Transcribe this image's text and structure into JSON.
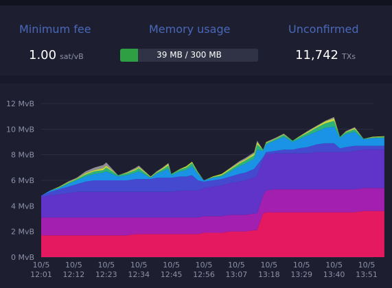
{
  "stats": {
    "min_fee": {
      "label": "Minimum fee",
      "value": "1.00",
      "unit": "sat/vB"
    },
    "memory": {
      "label": "Memory usage",
      "text": "39 MB / 300 MB",
      "fill_fraction": 0.13
    },
    "unconfirmed": {
      "label": "Unconfirmed",
      "value": "11,742",
      "unit": "TXs"
    }
  },
  "colors": {
    "label": "#4a68b9",
    "memory_fill": "#2ea043",
    "layers": [
      "#e5195f",
      "#a21faf",
      "#6034c9",
      "#4549d0",
      "#1a93e6",
      "#2bb37a",
      "#c9d83a",
      "#8f8f94"
    ]
  },
  "chart_data": {
    "type": "area",
    "stacked": true,
    "y_unit": "MvB",
    "ylim": [
      0,
      12
    ],
    "y_ticks": [
      "0 MvB",
      "2 MvB",
      "4 MvB",
      "6 MvB",
      "8 MvB",
      "10 MvB",
      "12 MvB"
    ],
    "x_ticks": [
      {
        "date": "10/5",
        "time": "12:01"
      },
      {
        "date": "10/5",
        "time": "12:12"
      },
      {
        "date": "10/5",
        "time": "12:23"
      },
      {
        "date": "10/5",
        "time": "12:34"
      },
      {
        "date": "10/5",
        "time": "12:45"
      },
      {
        "date": "10/5",
        "time": "12:56"
      },
      {
        "date": "10/5",
        "time": "13:07"
      },
      {
        "date": "10/5",
        "time": "13:18"
      },
      {
        "date": "10/5",
        "time": "13:29"
      },
      {
        "date": "10/5",
        "time": "13:40"
      },
      {
        "date": "10/5",
        "time": "13:51"
      }
    ],
    "x": [
      "12:01",
      "12:04",
      "12:07",
      "12:10",
      "12:13",
      "12:16",
      "12:19",
      "12:22",
      "12:23",
      "12:27",
      "12:30",
      "12:33",
      "12:34",
      "12:38",
      "12:40",
      "12:42",
      "12:44",
      "12:45",
      "12:48",
      "12:50",
      "12:52",
      "12:54",
      "12:56",
      "12:59",
      "13:02",
      "13:05",
      "13:08",
      "13:10",
      "13:13",
      "13:14",
      "13:16",
      "13:17",
      "13:20",
      "13:23",
      "13:26",
      "13:28",
      "13:31",
      "13:34",
      "13:37",
      "13:40",
      "13:42",
      "13:44",
      "13:47",
      "13:50",
      "13:53",
      "13:57"
    ],
    "series_totals": [
      4.8,
      5.2,
      5.5,
      5.9,
      6.2,
      6.6,
      6.9,
      7.2,
      7.4,
      6.4,
      6.7,
      7.0,
      7.3,
      6.3,
      6.7,
      7.0,
      7.4,
      6.4,
      6.9,
      7.2,
      7.5,
      6.8,
      6.0,
      6.3,
      6.6,
      7.0,
      7.4,
      7.7,
      8.1,
      9.1,
      8.5,
      8.9,
      9.2,
      9.6,
      9.1,
      9.4,
      9.8,
      10.2,
      10.6,
      11.0,
      9.4,
      9.8,
      10.1,
      9.2,
      9.4,
      9.5
    ],
    "series": [
      {
        "values": [
          1.7,
          1.7,
          1.7,
          1.7,
          1.7,
          1.7,
          1.7,
          1.7,
          1.7,
          1.7,
          1.7,
          1.8,
          1.8,
          1.8,
          1.8,
          1.8,
          1.8,
          1.8,
          1.8,
          1.8,
          1.8,
          1.8,
          1.9,
          1.9,
          1.9,
          2.0,
          2.0,
          2.0,
          2.1,
          2.1,
          3.4,
          3.5,
          3.5,
          3.5,
          3.5,
          3.5,
          3.5,
          3.5,
          3.5,
          3.5,
          3.5,
          3.5,
          3.5,
          3.6,
          3.6,
          3.6
        ]
      },
      {
        "values": [
          1.4,
          1.4,
          1.4,
          1.4,
          1.4,
          1.4,
          1.4,
          1.4,
          1.4,
          1.4,
          1.4,
          1.3,
          1.3,
          1.3,
          1.3,
          1.3,
          1.3,
          1.3,
          1.3,
          1.3,
          1.3,
          1.3,
          1.3,
          1.3,
          1.3,
          1.3,
          1.3,
          1.3,
          1.3,
          1.3,
          1.4,
          1.7,
          1.8,
          1.8,
          1.8,
          1.8,
          1.8,
          1.8,
          1.8,
          1.8,
          1.8,
          1.8,
          1.8,
          1.8,
          1.8,
          1.8
        ]
      },
      {
        "values": [
          1.6,
          1.7,
          1.8,
          1.9,
          2.0,
          2.0,
          2.0,
          2.0,
          2.0,
          2.0,
          2.0,
          2.0,
          2.0,
          2.0,
          2.0,
          2.0,
          2.0,
          2.0,
          2.1,
          2.1,
          2.1,
          2.1,
          2.2,
          2.3,
          2.4,
          2.5,
          2.6,
          2.7,
          2.8,
          3.0,
          2.8,
          2.8,
          2.8,
          2.8,
          2.8,
          2.8,
          2.8,
          2.9,
          2.9,
          2.9,
          2.9,
          2.9,
          3.0,
          3.0,
          3.0,
          3.0
        ]
      },
      {
        "values": [
          0.1,
          0.3,
          0.4,
          0.5,
          0.6,
          0.8,
          0.9,
          0.9,
          0.9,
          0.9,
          0.9,
          1.0,
          1.0,
          1.0,
          1.1,
          1.1,
          1.1,
          1.1,
          1.1,
          1.1,
          1.2,
          0.8,
          0.5,
          0.5,
          0.5,
          0.5,
          0.6,
          0.6,
          0.7,
          0.8,
          0.2,
          0.2,
          0.2,
          0.3,
          0.3,
          0.4,
          0.5,
          0.6,
          0.7,
          0.7,
          0.3,
          0.4,
          0.4,
          0.3,
          0.3,
          0.3
        ]
      },
      {
        "values": [
          0,
          0.1,
          0.1,
          0.2,
          0.3,
          0.4,
          0.5,
          0.6,
          0.7,
          0.3,
          0.4,
          0.5,
          0.6,
          0.1,
          0.3,
          0.5,
          0.7,
          0.2,
          0.4,
          0.5,
          0.7,
          0.5,
          0.1,
          0.2,
          0.2,
          0.4,
          0.6,
          0.7,
          0.8,
          1.2,
          0.5,
          0.6,
          0.8,
          1.0,
          0.6,
          0.7,
          0.9,
          1.0,
          1.2,
          1.3,
          0.8,
          1.0,
          1.1,
          0.5,
          0.6,
          0.6
        ]
      },
      {
        "values": [
          0,
          0,
          0.05,
          0.1,
          0.1,
          0.15,
          0.2,
          0.2,
          0.3,
          0.1,
          0.15,
          0.2,
          0.25,
          0.05,
          0.1,
          0.15,
          0.25,
          0.1,
          0.15,
          0.2,
          0.25,
          0.1,
          0,
          0.05,
          0.1,
          0.15,
          0.2,
          0.25,
          0.25,
          0.4,
          0.1,
          0.1,
          0.1,
          0.15,
          0.1,
          0.15,
          0.2,
          0.3,
          0.35,
          0.45,
          0.1,
          0.15,
          0.2,
          0.05,
          0.05,
          0.1
        ]
      },
      {
        "values": [
          0,
          0,
          0.05,
          0.05,
          0.05,
          0.1,
          0.1,
          0.15,
          0.15,
          0,
          0.05,
          0.1,
          0.1,
          0.05,
          0.05,
          0.1,
          0.15,
          0,
          0.05,
          0.1,
          0.1,
          0.05,
          0,
          0.05,
          0.1,
          0.1,
          0.1,
          0.1,
          0.15,
          0.2,
          0,
          0.05,
          0.05,
          0.05,
          0,
          0.05,
          0.1,
          0.1,
          0.15,
          0.2,
          0,
          0.05,
          0.1,
          0,
          0.05,
          0.05
        ]
      },
      {
        "values": [
          0,
          0,
          0,
          0.05,
          0.05,
          0.15,
          0.2,
          0.25,
          0.25,
          0,
          0.05,
          0.1,
          0.1,
          0,
          0.05,
          0.05,
          0.05,
          0,
          0,
          0,
          0,
          0,
          0,
          0,
          0,
          0.05,
          0.1,
          0.1,
          0.1,
          0.1,
          0,
          0.05,
          0.05,
          0.05,
          0,
          0,
          0.05,
          0.05,
          0.05,
          0.1,
          0,
          0.05,
          0.05,
          0,
          0,
          0
        ]
      }
    ]
  }
}
